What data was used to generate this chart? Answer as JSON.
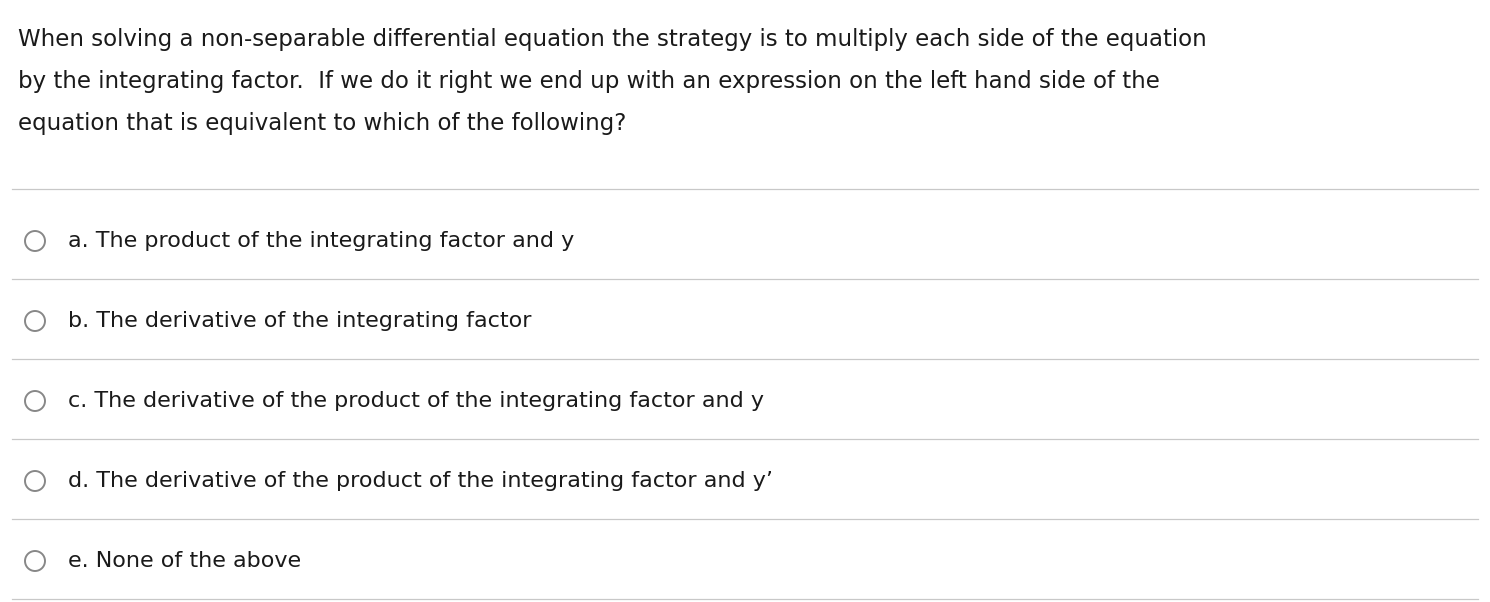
{
  "background_color": "#ffffff",
  "question_lines": [
    "When solving a non-separable differential equation the strategy is to multiply each side of the equation",
    "by the integrating factor.  If we do it right we end up with an expression on the left hand side of the",
    "equation that is equivalent to which of the following?"
  ],
  "options": [
    "a. The product of the integrating factor and y",
    "b. The derivative of the integrating factor",
    "c. The derivative of the product of the integrating factor and y",
    "d. The derivative of the product of the integrating factor and y’",
    "e. None of the above"
  ],
  "divider_color": "#c8c8c8",
  "text_color": "#1a1a1a",
  "circle_edge_color": "#888888",
  "font_size_question": 16.5,
  "font_size_options": 16.0,
  "fig_width": 14.9,
  "fig_height": 6.02,
  "dpi": 100
}
